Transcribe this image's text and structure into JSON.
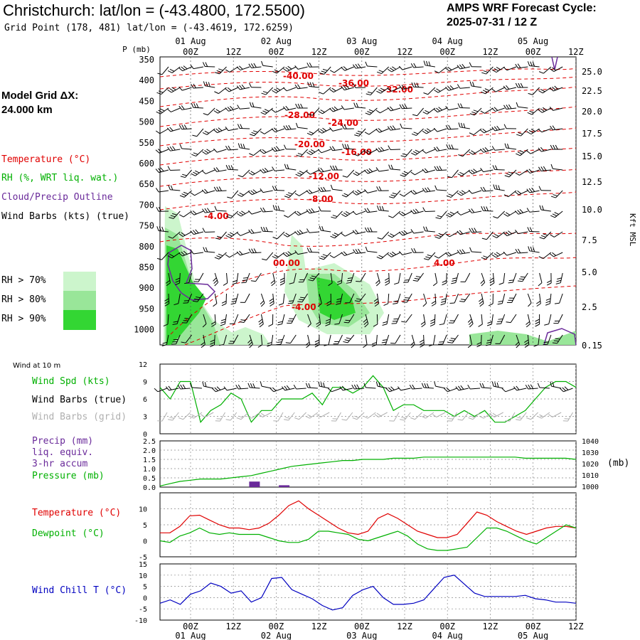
{
  "header": {
    "title": "Christchurch:  lat/lon = (-43.4800, 172.5500)",
    "subtitle": "Grid Point (178, 481) lat/lon = (-43.4619, 172.6259)",
    "cycle_line1": "AMPS WRF Forecast Cycle:",
    "cycle_line2": "2025-07-31 / 12  Z"
  },
  "model_grid": {
    "label": "Model Grid ΔX:",
    "value": " 24.000 km"
  },
  "upper_legend": {
    "temperature": "Temperature (°C)",
    "rh": "RH (%, WRT liq. wat.)",
    "cloud": "Cloud/Precip Outline",
    "wind": "Wind Barbs (kts) (true)",
    "rh70": "RH > 70%",
    "rh80": "RH > 80%",
    "rh90": "RH > 90%"
  },
  "colors": {
    "temperature": "#e00000",
    "rh_text": "#00b000",
    "cloud": "#6a2a9a",
    "rh70": "#ccf5cc",
    "rh80": "#99e699",
    "rh90": "#33d633",
    "windchill": "#0000c0",
    "pressure": "#00b000",
    "precip": "#6a2a9a",
    "grid_barbs": "#b0b0b0"
  },
  "lower_legend": {
    "wind_at_10m": "Wind at 10 m",
    "wind_spd": "Wind Spd (kts)",
    "wind_barbs_true": "Wind Barbs (true)",
    "wind_barbs_grid": "Wind Barbs (grid)",
    "precip1": "Precip (mm)",
    "precip2": "liq. equiv.",
    "precip3": "3-hr accum",
    "pressure": "Pressure (mb)",
    "pressure_unit": "(mb)",
    "temperature": "Temperature (°C)",
    "dewpoint": "Dewpoint (°C)",
    "wind_chill": "Wind Chill T (°C)"
  },
  "chart_data": [
    {
      "type": "heatmap",
      "panel": "cross-section",
      "ylabel_left": "P (mb)",
      "ylabel_right": "Kft MSL",
      "x_tick_labels": [
        "00Z",
        "12Z",
        "00Z",
        "12Z",
        "00Z",
        "12Z",
        "00Z",
        "12Z",
        "00Z",
        "12Z"
      ],
      "x_date_labels": [
        "01 Aug",
        "02 Aug",
        "03 Aug",
        "04 Aug",
        "05 Aug"
      ],
      "pressure_ticks": [
        "350",
        "400",
        "450",
        "500",
        "550",
        "600",
        "650",
        "700",
        "750",
        "800",
        "850",
        "900",
        "950",
        "1000"
      ],
      "height_ticks": [
        "25.0",
        "22.5",
        "20.0",
        "17.5",
        "15.0",
        "12.5",
        "10.0",
        "7.5",
        "5.0",
        "2.5",
        "0.15"
      ],
      "temperature_contour_labels": [
        "-40.00",
        "-36.00",
        "-32.00",
        "-28.00",
        "-24.00",
        "-20.00",
        "-16.00",
        "-12.00",
        "-8.00",
        "-4.00",
        "00.00",
        "4.00",
        "-4.00",
        "4.00"
      ]
    },
    {
      "type": "line",
      "panel": "wind",
      "series": [
        {
          "name": "Wind Spd (kts)",
          "color": "#00b000",
          "values": [
            8,
            6,
            9,
            9,
            2,
            4,
            5,
            7,
            6,
            2,
            4,
            4,
            6,
            6,
            6,
            7,
            5,
            8,
            8,
            7,
            8,
            10,
            8,
            4,
            5,
            5,
            4,
            4,
            4,
            3,
            4,
            3,
            4,
            2,
            2,
            3,
            4,
            6,
            8,
            9,
            9,
            8
          ]
        }
      ],
      "ylim": [
        0,
        12
      ],
      "y_ticks": [
        "12",
        "9",
        "6",
        "3",
        "0"
      ]
    },
    {
      "type": "line",
      "panel": "precip-pressure",
      "series": [
        {
          "name": "Pressure (mb)",
          "color": "#00b000",
          "values": [
            1001,
            1003,
            1005,
            1006,
            1007,
            1007,
            1007,
            1008,
            1009,
            1010,
            1012,
            1014,
            1016,
            1018,
            1019,
            1020,
            1021,
            1022,
            1023,
            1023,
            1024,
            1024,
            1024,
            1025,
            1025,
            1025,
            1026,
            1026,
            1026,
            1026,
            1026,
            1026,
            1026,
            1026,
            1026,
            1026,
            1025,
            1025,
            1025,
            1025,
            1025,
            1024
          ]
        },
        {
          "name": "Precip (mm)",
          "color": "#6a2a9a",
          "type": "bar",
          "values": [
            0,
            0,
            0,
            0.3,
            0.1,
            0,
            0,
            0,
            0,
            0,
            0,
            0,
            0,
            0
          ]
        }
      ],
      "left_ticks": [
        "2.5",
        "2.0",
        "1.5",
        "1.0",
        "0.5",
        "0.0"
      ],
      "right_ticks": [
        "1040",
        "1030",
        "1020",
        "1010",
        "1000"
      ],
      "ylim_left": [
        0,
        2.5
      ],
      "ylim_right": [
        1000,
        1040
      ]
    },
    {
      "type": "line",
      "panel": "temperature-dewpoint",
      "series": [
        {
          "name": "Temperature (°C)",
          "color": "#e00000",
          "values": [
            2.5,
            2.5,
            4.5,
            7.8,
            8,
            6.5,
            5,
            4,
            4,
            3.5,
            4,
            5.5,
            8,
            11,
            12.5,
            10,
            8,
            6,
            4,
            2.5,
            2,
            3,
            7,
            8.5,
            7,
            5,
            3,
            2,
            1,
            1,
            2,
            5.5,
            9,
            8,
            6,
            4.5,
            3,
            2,
            3,
            4,
            4.5,
            4.5,
            4
          ]
        },
        {
          "name": "Dewpoint (°C)",
          "color": "#00b000",
          "values": [
            0,
            -0.5,
            1.5,
            2.5,
            4,
            2.5,
            2,
            2.5,
            2,
            2,
            2,
            1,
            0,
            -0.5,
            -0.5,
            0.5,
            3,
            3,
            2.5,
            2,
            0.5,
            0,
            1,
            2,
            3,
            1.5,
            -1,
            -2.5,
            -3,
            -3,
            -2.5,
            -2,
            1,
            4,
            4,
            3,
            1.5,
            0,
            -1,
            1,
            3,
            5,
            4
          ]
        }
      ],
      "ylim": [
        -5,
        15
      ],
      "y_ticks": [
        "10",
        "5",
        "0",
        "-5"
      ]
    },
    {
      "type": "line",
      "panel": "wind-chill",
      "series": [
        {
          "name": "Wind Chill T (°C)",
          "color": "#0000c0",
          "values": [
            -2.5,
            -1,
            -3,
            1.5,
            3,
            6.5,
            5,
            2,
            3,
            -2,
            0,
            8.5,
            9,
            3.5,
            1.5,
            -0.5,
            -3.5,
            -5.5,
            -4.5,
            1,
            3.5,
            5,
            0,
            -3,
            -3,
            -2.5,
            -1,
            4,
            9,
            10,
            6,
            2,
            0.5,
            0.5,
            0.5,
            0.5,
            1,
            -0.5,
            -1,
            -2,
            -2,
            -2.5
          ]
        }
      ],
      "ylim": [
        -10,
        15
      ],
      "y_ticks": [
        "15",
        "10",
        "5",
        "0",
        "-5",
        "-10"
      ]
    }
  ]
}
